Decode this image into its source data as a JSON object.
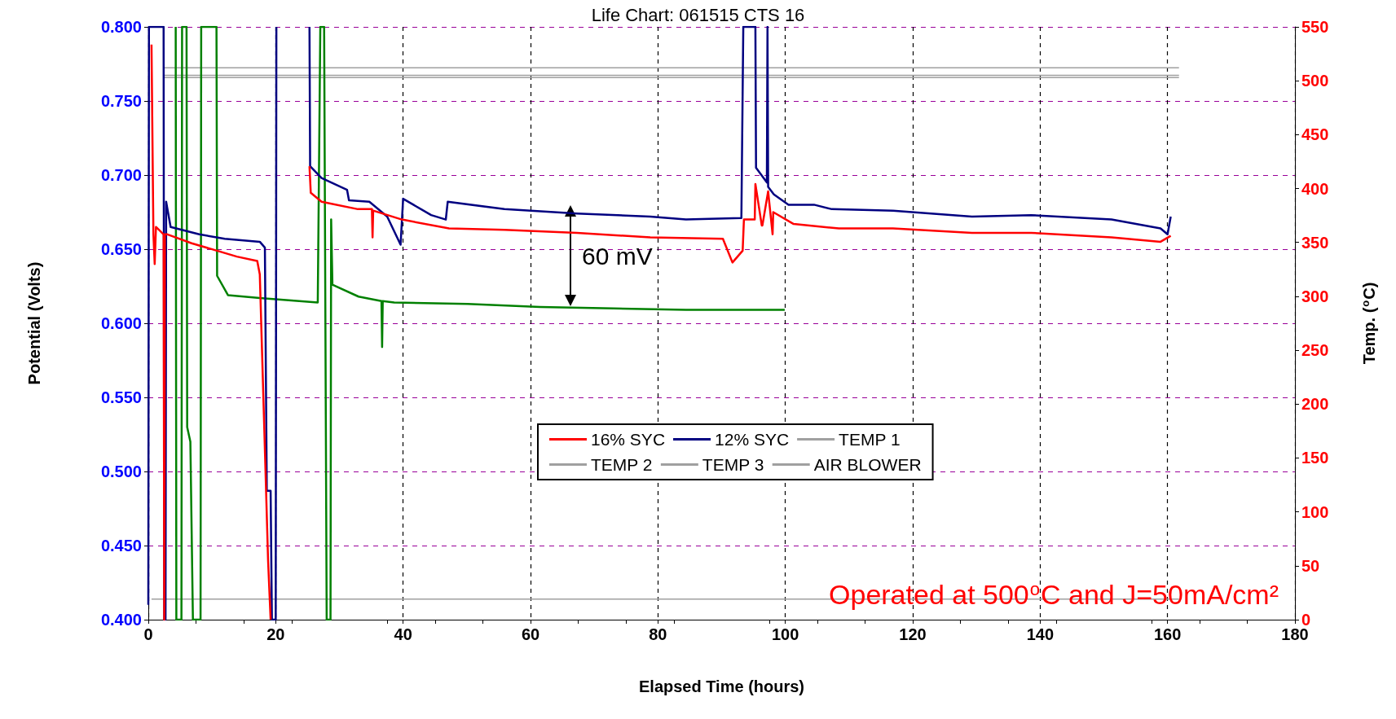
{
  "chart_data": {
    "type": "line",
    "title": "Life Chart: 061515 CTS 16",
    "xlabel": "Elapsed Time (hours)",
    "ylabel": "Potential (Volts)",
    "y2label": "Temp. ($^{o}$C)",
    "xlim": [
      0,
      180
    ],
    "xticks": [
      0,
      20,
      40,
      60,
      80,
      100,
      120,
      140,
      160,
      180
    ],
    "ylim": [
      0.4,
      0.8
    ],
    "yticks": [
      {
        "value": 0.4,
        "label": "0.400"
      },
      {
        "value": 0.45,
        "label": "0.450"
      },
      {
        "value": 0.5,
        "label": "0.500"
      },
      {
        "value": 0.55,
        "label": "0.550"
      },
      {
        "value": 0.6,
        "label": "0.600"
      },
      {
        "value": 0.65,
        "label": "0.650"
      },
      {
        "value": 0.7,
        "label": "0.700"
      },
      {
        "value": 0.75,
        "label": "0.750"
      },
      {
        "value": 0.8,
        "label": "0.800"
      }
    ],
    "y2lim": [
      0,
      550
    ],
    "y2ticks": [
      0,
      50,
      100,
      150,
      200,
      250,
      300,
      350,
      400,
      450,
      500,
      550
    ],
    "grid": true,
    "legend": "bottom",
    "series": [
      {
        "name": "16% SYC",
        "color": "#ff0000",
        "x": [
          0.5,
          0.8,
          1,
          1.2,
          2.4,
          2.5,
          2.6,
          3,
          6.8,
          13.9,
          17.1,
          17.5,
          18.4,
          18.8,
          19.2,
          22,
          25.3,
          25.5,
          27.2,
          32.9,
          35.1,
          35.2,
          35.3,
          39.8,
          47.2,
          55.9,
          67.3,
          78.8,
          90.2,
          91.7,
          93.3,
          93.5,
          95.2,
          95.3,
          96.3,
          96.4,
          97.3,
          98,
          98.1,
          101.3,
          108.4,
          116.9,
          129.3,
          138.6,
          151.2,
          158.9,
          160.5
        ],
        "values": [
          0.788,
          0.66,
          0.64,
          0.665,
          0.66,
          0.4,
          0.66,
          0.66,
          0.654,
          0.645,
          0.642,
          0.633,
          0.5,
          0.44,
          0.4,
          null,
          0.706,
          0.688,
          0.682,
          0.677,
          0.677,
          0.658,
          0.676,
          0.67,
          0.664,
          0.663,
          0.661,
          0.658,
          0.657,
          0.641,
          0.649,
          0.67,
          0.67,
          0.694,
          0.666,
          0.666,
          0.689,
          0.66,
          0.675,
          0.667,
          0.664,
          0.664,
          0.661,
          0.661,
          0.658,
          0.655,
          0.659
        ]
      },
      {
        "name": "12% SYC",
        "color": "#000080",
        "x": [
          0,
          0.1,
          2.4,
          2.5,
          2.7,
          2.8,
          3.5,
          8,
          12,
          17.5,
          18.3,
          18.6,
          19.2,
          19.4,
          20,
          20.1,
          22,
          25.3,
          25.4,
          27.2,
          31.2,
          31.5,
          34.7,
          37.5,
          39.6,
          40,
          44.4,
          46.7,
          47,
          55.9,
          67.3,
          78.8,
          84.4,
          93.1,
          93.4,
          95.3,
          95.4,
          97.1,
          97.2,
          97.3,
          98.2,
          100.5,
          104.5,
          107.3,
          116.9,
          129.3,
          138.6,
          151.2,
          158.9,
          160,
          160.5
        ],
        "values": [
          0.41,
          0.8,
          0.8,
          0.4,
          0.4,
          0.682,
          0.665,
          0.66,
          0.657,
          0.655,
          0.651,
          0.487,
          0.487,
          0.4,
          0.4,
          0.8,
          null,
          0.8,
          0.706,
          0.698,
          0.69,
          0.683,
          0.682,
          0.672,
          0.653,
          0.684,
          0.673,
          0.67,
          0.682,
          0.677,
          0.674,
          0.672,
          0.67,
          0.671,
          0.8,
          0.8,
          0.705,
          0.695,
          0.8,
          0.692,
          0.687,
          0.68,
          0.68,
          0.677,
          0.676,
          0.672,
          0.673,
          0.67,
          0.664,
          0.66,
          0.672
        ]
      },
      {
        "color": "#008000",
        "x": [
          4.3,
          4.4,
          5.2,
          5.3,
          6,
          6.1,
          6.6,
          7,
          8.2,
          8.3,
          10.7,
          10.8,
          12.5,
          17.5,
          26.6,
          27,
          27.6,
          28,
          28.6,
          28.7,
          28.9,
          33,
          36.6,
          36.7,
          36.8,
          38.6,
          50.1,
          61.5,
          73,
          84.4,
          99.9
        ],
        "values": [
          0.8,
          0.4,
          0.4,
          0.8,
          0.8,
          0.53,
          0.52,
          0.4,
          0.4,
          0.8,
          0.8,
          0.632,
          0.619,
          0.617,
          0.614,
          0.8,
          0.8,
          0.4,
          0.4,
          0.67,
          0.626,
          0.618,
          0.615,
          0.584,
          0.615,
          0.614,
          0.613,
          0.611,
          0.61,
          0.609,
          0.609
        ]
      },
      {
        "name": "TEMP 1",
        "color": "#a0a0a0",
        "axis": "y2",
        "x": [
          2.4,
          161.8
        ],
        "values": [
          512,
          512
        ]
      },
      {
        "name": "TEMP 2",
        "color": "#a0a0a0",
        "axis": "y2",
        "x": [
          2.4,
          161.8
        ],
        "values": [
          505,
          505
        ]
      },
      {
        "name": "TEMP 3",
        "color": "#a0a0a0",
        "axis": "y2",
        "x": [
          2.4,
          161.8
        ],
        "values": [
          503,
          503
        ]
      },
      {
        "name": "AIR BLOWER",
        "color": "#a0a0a0",
        "axis": "y2",
        "x": [
          0.5,
          161.8
        ],
        "values": [
          19,
          19
        ]
      }
    ],
    "annotations": [
      "60 mV",
      "Operated at 500$^{o}$C and J=50mA/cm²"
    ]
  }
}
